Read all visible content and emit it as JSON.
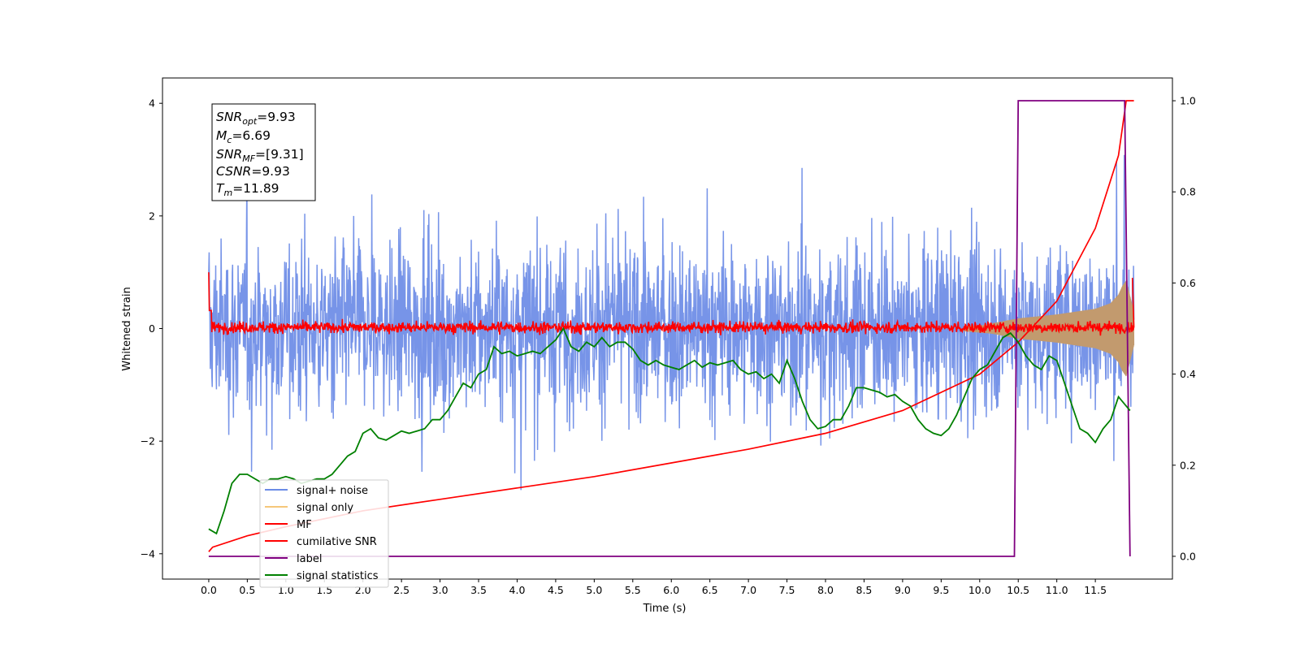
{
  "chart_data": {
    "type": "line",
    "xlabel": "Time (s)",
    "ylabel": "Whitened strain",
    "xlim": [
      -0.6,
      12.5
    ],
    "ylim": [
      -4.45,
      4.45
    ],
    "ylim_right": [
      -0.05,
      1.05
    ],
    "xticks": [
      "0.0",
      "0.5",
      "1.0",
      "1.5",
      "2.0",
      "2.5",
      "3.0",
      "3.5",
      "4.0",
      "4.5",
      "5.0",
      "5.5",
      "6.0",
      "6.5",
      "7.0",
      "7.5",
      "8.0",
      "8.5",
      "9.0",
      "9.5",
      "10.0",
      "10.5",
      "11.0",
      "11.5"
    ],
    "yticks": [
      "4",
      "2",
      "0",
      "−2",
      "−4"
    ],
    "yticks_right": [
      "1.0",
      "0.8",
      "0.6",
      "0.4",
      "0.2",
      "0.0"
    ],
    "grid": false,
    "legend_position": "lower-left",
    "annotations": {
      "snr_opt": {
        "label": "SNR",
        "sub": "opt",
        "value": "=9.93"
      },
      "mc": {
        "label": "M",
        "sub": "c",
        "value": "=6.69"
      },
      "snr_mf": {
        "label": "SNR",
        "sub": "MF",
        "value": "=[9.31]"
      },
      "csnr": {
        "label": "CSNR",
        "sub": "",
        "value": "=9.93"
      },
      "tm": {
        "label": "T",
        "sub": "m",
        "value": "=11.89"
      }
    },
    "legend": [
      {
        "label": "signal+ noise",
        "color": "#6b8be6"
      },
      {
        "label": "signal only",
        "color": "#f5c77a"
      },
      {
        "label": "MF",
        "color": "#ff0000"
      },
      {
        "label": "cumilative SNR",
        "color": "#ff0000"
      },
      {
        "label": "label",
        "color": "#800080"
      },
      {
        "label": "signal statistics",
        "color": "#008000"
      }
    ],
    "series": [
      {
        "name": "signal+ noise",
        "axis": "left",
        "color": "#6b8be6",
        "description": "whitened noise, approx. within [-3.8, 4.0] over t in [0, 12.0]"
      },
      {
        "name": "signal only",
        "axis": "left",
        "color": "#c29a6e",
        "envelope": {
          "x": [
            10.0,
            10.5,
            11.0,
            11.5,
            11.7,
            11.8,
            11.85,
            11.9,
            12.0
          ],
          "amp": [
            0.05,
            0.18,
            0.25,
            0.35,
            0.45,
            0.6,
            0.75,
            0.85,
            0.3
          ]
        }
      },
      {
        "name": "MF",
        "axis": "left",
        "color": "#ff0000",
        "description": "matched filter output, approx. within [-0.2, 0.3]; spike to 1.0 at t=0"
      },
      {
        "name": "cumilative SNR",
        "axis": "right",
        "color": "#ff0000",
        "x": [
          0.0,
          0.05,
          0.5,
          1.0,
          2.0,
          3.0,
          4.0,
          5.0,
          6.0,
          7.0,
          8.0,
          9.0,
          10.0,
          10.5,
          11.0,
          11.5,
          11.8,
          11.9,
          12.0
        ],
        "y": [
          0.01,
          0.02,
          0.045,
          0.065,
          0.1,
          0.125,
          0.15,
          0.175,
          0.205,
          0.235,
          0.27,
          0.32,
          0.4,
          0.47,
          0.56,
          0.72,
          0.88,
          1.0,
          1.0
        ]
      },
      {
        "name": "label",
        "axis": "right",
        "color": "#800080",
        "x": [
          0.0,
          10.45,
          10.5,
          11.88,
          11.95
        ],
        "y": [
          0.0,
          0.0,
          1.0,
          1.0,
          0.0
        ]
      },
      {
        "name": "signal statistics",
        "axis": "right",
        "color": "#008000",
        "x": [
          0.0,
          0.1,
          0.2,
          0.3,
          0.4,
          0.5,
          0.6,
          0.7,
          0.8,
          0.9,
          1.0,
          1.1,
          1.2,
          1.3,
          1.4,
          1.5,
          1.6,
          1.7,
          1.8,
          1.9,
          2.0,
          2.1,
          2.2,
          2.3,
          2.4,
          2.5,
          2.6,
          2.7,
          2.8,
          2.9,
          3.0,
          3.1,
          3.2,
          3.3,
          3.4,
          3.5,
          3.6,
          3.7,
          3.8,
          3.9,
          4.0,
          4.1,
          4.2,
          4.3,
          4.4,
          4.5,
          4.6,
          4.7,
          4.8,
          4.9,
          5.0,
          5.1,
          5.2,
          5.3,
          5.4,
          5.5,
          5.6,
          5.7,
          5.8,
          5.9,
          6.0,
          6.1,
          6.2,
          6.3,
          6.4,
          6.5,
          6.6,
          6.7,
          6.8,
          6.9,
          7.0,
          7.1,
          7.2,
          7.3,
          7.4,
          7.5,
          7.6,
          7.7,
          7.8,
          7.9,
          8.0,
          8.1,
          8.2,
          8.3,
          8.4,
          8.5,
          8.6,
          8.7,
          8.8,
          8.9,
          9.0,
          9.1,
          9.2,
          9.3,
          9.4,
          9.5,
          9.6,
          9.7,
          9.8,
          9.9,
          10.0,
          10.1,
          10.2,
          10.3,
          10.4,
          10.5,
          10.6,
          10.7,
          10.8,
          10.9,
          11.0,
          11.1,
          11.2,
          11.3,
          11.4,
          11.5,
          11.6,
          11.7,
          11.8,
          11.9,
          11.95
        ],
        "y": [
          0.06,
          0.05,
          0.1,
          0.16,
          0.18,
          0.18,
          0.17,
          0.16,
          0.17,
          0.17,
          0.175,
          0.17,
          0.16,
          0.165,
          0.17,
          0.17,
          0.18,
          0.2,
          0.22,
          0.23,
          0.27,
          0.28,
          0.26,
          0.255,
          0.265,
          0.275,
          0.27,
          0.275,
          0.28,
          0.3,
          0.3,
          0.32,
          0.35,
          0.38,
          0.37,
          0.4,
          0.41,
          0.46,
          0.445,
          0.45,
          0.44,
          0.445,
          0.45,
          0.445,
          0.46,
          0.475,
          0.5,
          0.46,
          0.45,
          0.47,
          0.46,
          0.48,
          0.46,
          0.47,
          0.47,
          0.455,
          0.43,
          0.42,
          0.43,
          0.42,
          0.415,
          0.41,
          0.42,
          0.43,
          0.415,
          0.425,
          0.42,
          0.425,
          0.43,
          0.41,
          0.4,
          0.405,
          0.39,
          0.4,
          0.38,
          0.43,
          0.39,
          0.34,
          0.3,
          0.28,
          0.285,
          0.3,
          0.3,
          0.33,
          0.37,
          0.37,
          0.365,
          0.36,
          0.35,
          0.355,
          0.34,
          0.33,
          0.3,
          0.28,
          0.27,
          0.265,
          0.28,
          0.31,
          0.35,
          0.39,
          0.41,
          0.42,
          0.45,
          0.48,
          0.49,
          0.47,
          0.44,
          0.42,
          0.41,
          0.44,
          0.43,
          0.38,
          0.33,
          0.28,
          0.27,
          0.25,
          0.28,
          0.3,
          0.35,
          0.33,
          0.32
        ]
      }
    ]
  }
}
